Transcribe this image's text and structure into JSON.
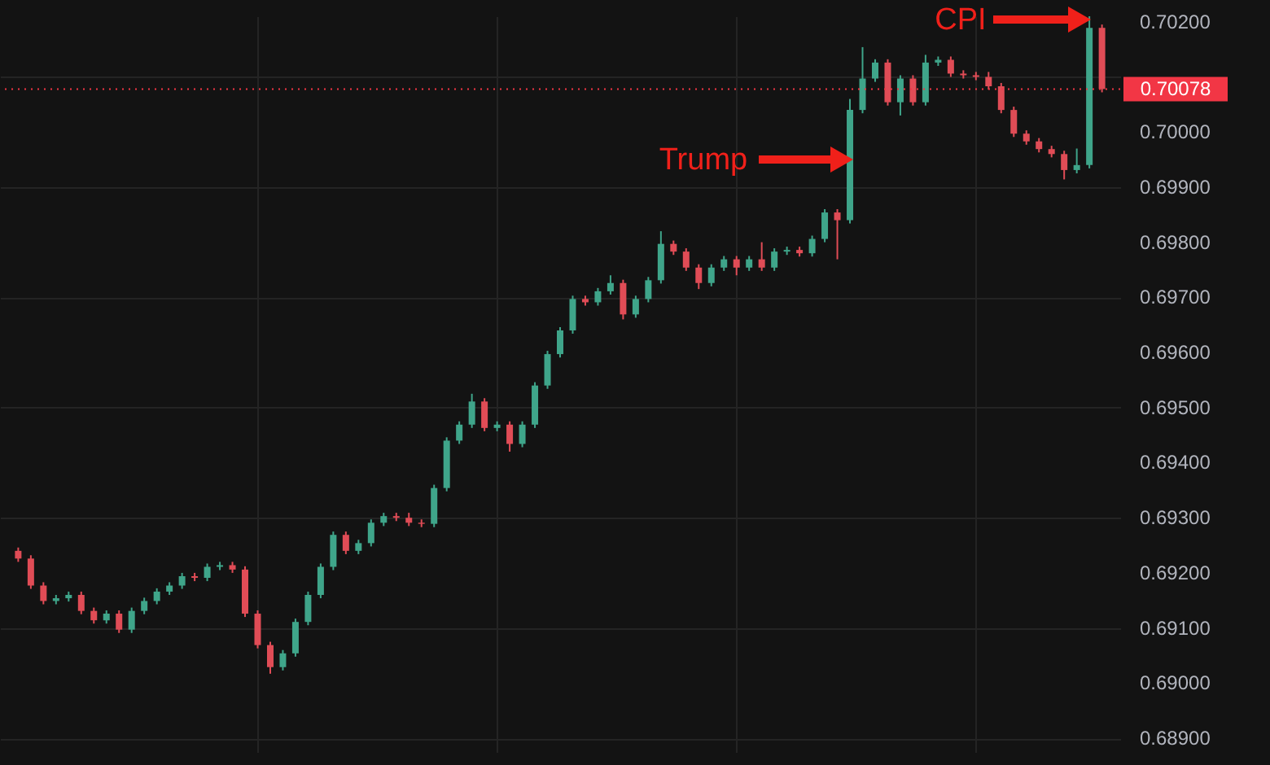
{
  "chart_data": {
    "type": "candlestick",
    "categories": [
      null,
      null,
      null,
      null,
      null,
      null,
      null,
      null,
      null,
      null,
      null,
      null,
      null,
      null,
      null,
      null,
      null,
      null,
      null,
      null,
      null,
      null,
      null,
      null,
      null,
      null,
      null,
      null,
      null,
      null,
      null,
      null,
      null,
      null,
      null,
      null,
      null,
      null,
      null,
      null,
      null,
      null,
      null,
      null,
      null,
      null,
      null,
      null,
      null,
      null,
      null,
      null,
      null,
      null,
      null,
      null,
      null,
      null,
      null,
      null,
      null,
      null,
      null,
      null,
      null,
      null,
      null,
      null,
      null,
      null,
      null,
      null,
      null,
      null,
      null,
      null,
      null,
      null,
      null,
      null,
      null,
      null,
      null,
      null,
      null,
      null,
      null
    ],
    "ohlc": [
      [
        0.6924,
        0.69246,
        0.6922,
        0.69226
      ],
      [
        0.69226,
        0.69232,
        0.69171,
        0.69177
      ],
      [
        0.69177,
        0.69183,
        0.69143,
        0.69149
      ],
      [
        0.69149,
        0.6916,
        0.69143,
        0.69154
      ],
      [
        0.69154,
        0.69166,
        0.69148,
        0.6916
      ],
      [
        0.6916,
        0.69166,
        0.69125,
        0.69131
      ],
      [
        0.69131,
        0.69137,
        0.69108,
        0.69114
      ],
      [
        0.69114,
        0.69132,
        0.69108,
        0.69126
      ],
      [
        0.69126,
        0.69132,
        0.69091,
        0.69097
      ],
      [
        0.69097,
        0.69137,
        0.69091,
        0.69131
      ],
      [
        0.69131,
        0.69155,
        0.69125,
        0.69149
      ],
      [
        0.69149,
        0.69172,
        0.69143,
        0.69166
      ],
      [
        0.69166,
        0.69183,
        0.6916,
        0.69177
      ],
      [
        0.69177,
        0.692,
        0.69171,
        0.69194
      ],
      [
        0.69194,
        0.692,
        0.69185,
        0.69191
      ],
      [
        0.69191,
        0.69217,
        0.69185,
        0.69211
      ],
      [
        0.69211,
        0.6922,
        0.69205,
        0.69214
      ],
      [
        0.69214,
        0.6922,
        0.692,
        0.69206
      ],
      [
        0.69206,
        0.69212,
        0.6912,
        0.69126
      ],
      [
        0.69126,
        0.69132,
        0.69063,
        0.69069
      ],
      [
        0.69069,
        0.69075,
        0.69017,
        0.69029
      ],
      [
        0.69029,
        0.6906,
        0.69023,
        0.69054
      ],
      [
        0.69054,
        0.69117,
        0.69048,
        0.69111
      ],
      [
        0.69111,
        0.69166,
        0.69105,
        0.6916
      ],
      [
        0.6916,
        0.69217,
        0.69154,
        0.69211
      ],
      [
        0.69211,
        0.69275,
        0.69205,
        0.69269
      ],
      [
        0.69269,
        0.69275,
        0.69234,
        0.6924
      ],
      [
        0.6924,
        0.6926,
        0.69234,
        0.69254
      ],
      [
        0.69254,
        0.69297,
        0.69248,
        0.69291
      ],
      [
        0.69291,
        0.69309,
        0.69285,
        0.69303
      ],
      [
        0.69303,
        0.69309,
        0.69294,
        0.693
      ],
      [
        0.693,
        0.69309,
        0.69285,
        0.69291
      ],
      [
        0.69291,
        0.69297,
        0.69283,
        0.69289
      ],
      [
        0.69289,
        0.6936,
        0.69283,
        0.69354
      ],
      [
        0.69354,
        0.69446,
        0.69348,
        0.6944
      ],
      [
        0.6944,
        0.69475,
        0.69434,
        0.69469
      ],
      [
        0.69469,
        0.69525,
        0.69463,
        0.69511
      ],
      [
        0.69511,
        0.69517,
        0.69457,
        0.69463
      ],
      [
        0.69463,
        0.69475,
        0.69457,
        0.69469
      ],
      [
        0.69469,
        0.69475,
        0.6942,
        0.69434
      ],
      [
        0.69434,
        0.69475,
        0.69428,
        0.69469
      ],
      [
        0.69469,
        0.69546,
        0.69463,
        0.6954
      ],
      [
        0.6954,
        0.69603,
        0.69534,
        0.69597
      ],
      [
        0.69597,
        0.69646,
        0.69591,
        0.6964
      ],
      [
        0.6964,
        0.69703,
        0.69634,
        0.69697
      ],
      [
        0.69697,
        0.69703,
        0.69685,
        0.69691
      ],
      [
        0.69691,
        0.69717,
        0.69685,
        0.69711
      ],
      [
        0.69711,
        0.6974,
        0.69705,
        0.69726
      ],
      [
        0.69726,
        0.69732,
        0.6966,
        0.69669
      ],
      [
        0.69669,
        0.69703,
        0.69663,
        0.69697
      ],
      [
        0.69697,
        0.69737,
        0.69691,
        0.69731
      ],
      [
        0.69731,
        0.6982,
        0.69725,
        0.69797
      ],
      [
        0.69797,
        0.69803,
        0.69777,
        0.69783
      ],
      [
        0.69783,
        0.69789,
        0.69748,
        0.69754
      ],
      [
        0.69754,
        0.6976,
        0.69715,
        0.69726
      ],
      [
        0.69726,
        0.6976,
        0.6972,
        0.69754
      ],
      [
        0.69754,
        0.69775,
        0.69748,
        0.69769
      ],
      [
        0.69769,
        0.69775,
        0.6974,
        0.69754
      ],
      [
        0.69754,
        0.69775,
        0.69748,
        0.69769
      ],
      [
        0.69769,
        0.698,
        0.69748,
        0.69754
      ],
      [
        0.69754,
        0.69789,
        0.69748,
        0.69783
      ],
      [
        0.69783,
        0.69792,
        0.69777,
        0.69786
      ],
      [
        0.69786,
        0.69792,
        0.69774,
        0.6978
      ],
      [
        0.6978,
        0.69812,
        0.69774,
        0.69806
      ],
      [
        0.69806,
        0.6986,
        0.698,
        0.69854
      ],
      [
        0.69854,
        0.6986,
        0.69769,
        0.6984
      ],
      [
        0.6984,
        0.7006,
        0.69834,
        0.7004
      ],
      [
        0.7004,
        0.70154,
        0.70034,
        0.70097
      ],
      [
        0.70097,
        0.70132,
        0.70091,
        0.70126
      ],
      [
        0.70126,
        0.70132,
        0.70048,
        0.70054
      ],
      [
        0.70054,
        0.70103,
        0.7003,
        0.70097
      ],
      [
        0.70097,
        0.70103,
        0.70048,
        0.70054
      ],
      [
        0.70054,
        0.7014,
        0.70048,
        0.70126
      ],
      [
        0.70126,
        0.70137,
        0.7012,
        0.70131
      ],
      [
        0.70131,
        0.70137,
        0.701,
        0.70106
      ],
      [
        0.70106,
        0.70112,
        0.70097,
        0.70103
      ],
      [
        0.70103,
        0.70109,
        0.70094,
        0.701
      ],
      [
        0.701,
        0.70109,
        0.70077,
        0.70083
      ],
      [
        0.70083,
        0.70089,
        0.70034,
        0.7004
      ],
      [
        0.7004,
        0.70046,
        0.69991,
        0.69997
      ],
      [
        0.69997,
        0.70003,
        0.69977,
        0.69983
      ],
      [
        0.69983,
        0.69989,
        0.69963,
        0.69969
      ],
      [
        0.69969,
        0.69975,
        0.69954,
        0.6996
      ],
      [
        0.6996,
        0.69966,
        0.69914,
        0.69931
      ],
      [
        0.69931,
        0.6997,
        0.69925,
        0.6994
      ],
      [
        0.6994,
        0.7021,
        0.69934,
        0.70189
      ],
      [
        0.70189,
        0.70195,
        0.70072,
        0.70078
      ]
    ],
    "ylim": [
      0.68875,
      0.7021
    ],
    "yticks": [
      {
        "value": 0.689,
        "label": "0.68900"
      },
      {
        "value": 0.69,
        "label": "0.69000"
      },
      {
        "value": 0.691,
        "label": "0.69100"
      },
      {
        "value": 0.692,
        "label": "0.69200"
      },
      {
        "value": 0.693,
        "label": "0.69300"
      },
      {
        "value": 0.694,
        "label": "0.69400"
      },
      {
        "value": 0.695,
        "label": "0.69500"
      },
      {
        "value": 0.696,
        "label": "0.69600"
      },
      {
        "value": 0.697,
        "label": "0.69700"
      },
      {
        "value": 0.698,
        "label": "0.69800"
      },
      {
        "value": 0.699,
        "label": "0.69900"
      },
      {
        "value": 0.7,
        "label": "0.70000"
      },
      {
        "value": 0.701,
        "label": null
      },
      {
        "value": 0.702,
        "label": "0.70200"
      }
    ],
    "ref_lines": [
      {
        "axis": "y",
        "value": 0.70078,
        "label": "0.70078",
        "color": "#f23645",
        "line_style": "dotted"
      }
    ],
    "annotations": [
      "Trump",
      "CPI"
    ],
    "grid": true,
    "tick_labels": "y"
  }
}
